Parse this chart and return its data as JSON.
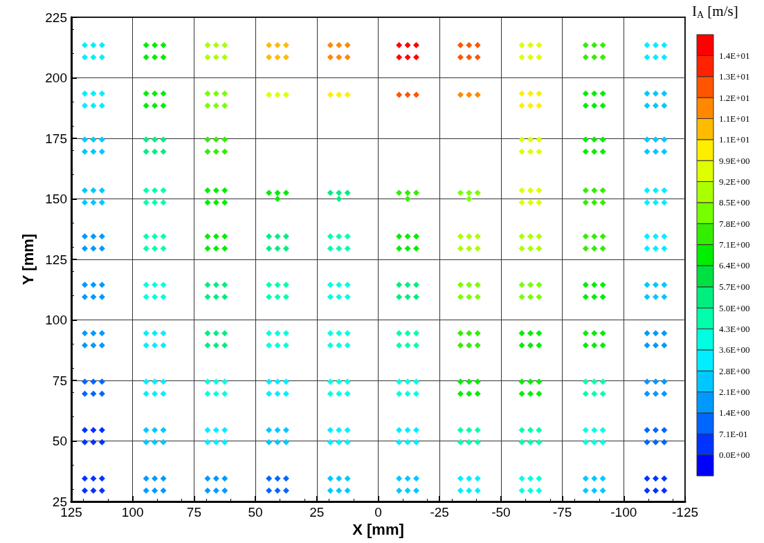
{
  "chart_data": {
    "type": "scatter",
    "xlabel": "X [mm]",
    "ylabel": "Y [mm]",
    "clabel": "I$_{A}$ [m/s]",
    "marker": "diamond",
    "grid": true,
    "xlim": [
      125,
      -125
    ],
    "xticks": [
      125,
      100,
      75,
      50,
      25,
      0,
      -25,
      -50,
      -75,
      -100,
      -125
    ],
    "ylim": [
      25,
      225
    ],
    "yticks": [
      25,
      50,
      75,
      100,
      125,
      150,
      175,
      200,
      225
    ],
    "clim": [
      -0.71,
      14.21
    ],
    "cticks": [
      {
        "value": 0,
        "label": "0.0E+00"
      },
      {
        "value": 0.71,
        "label": "7.1E-01"
      },
      {
        "value": 1.42,
        "label": "1.4E+00"
      },
      {
        "value": 2.13,
        "label": "2.1E+00"
      },
      {
        "value": 2.84,
        "label": "2.8E+00"
      },
      {
        "value": 3.55,
        "label": "3.6E+00"
      },
      {
        "value": 4.26,
        "label": "4.3E+00"
      },
      {
        "value": 4.97,
        "label": "5.0E+00"
      },
      {
        "value": 5.68,
        "label": "5.7E+00"
      },
      {
        "value": 6.4,
        "label": "6.4E+00"
      },
      {
        "value": 7.11,
        "label": "7.1E+00"
      },
      {
        "value": 7.82,
        "label": "7.8E+00"
      },
      {
        "value": 8.53,
        "label": "8.5E+00"
      },
      {
        "value": 9.24,
        "label": "9.2E+00"
      },
      {
        "value": 9.95,
        "label": "9.9E+00"
      },
      {
        "value": 10.66,
        "label": "1.1E+01"
      },
      {
        "value": 11.37,
        "label": "1.1E+01"
      },
      {
        "value": 12.08,
        "label": "1.2E+01"
      },
      {
        "value": 12.79,
        "label": "1.3E+01"
      },
      {
        "value": 13.5,
        "label": "1.4E+01"
      }
    ],
    "colors": [
      "#0000ff",
      "#0033ff",
      "#0066ff",
      "#0099ff",
      "#00c8ff",
      "#00eeff",
      "#00ffe0",
      "#00ffaa",
      "#00ee80",
      "#00e040",
      "#00ee00",
      "#33ee00",
      "#77ff00",
      "#aaff00",
      "#ddff00",
      "#ffee00",
      "#ffbb00",
      "#ff8800",
      "#ff5500",
      "#ff2200",
      "#ff0000"
    ],
    "series": [
      {
        "x": [
          119.5,
          116,
          112.5,
          119.5,
          116,
          112.5
        ],
        "values": [
          213.5,
          213.5,
          213.5,
          208.5,
          208.5,
          208.5
        ],
        "cvalues": [
          3.2,
          3.2,
          3.2,
          3.2,
          3.2,
          3.2
        ]
      },
      {
        "x": [
          94.5,
          91,
          87.5,
          94.5,
          91,
          87.5
        ],
        "values": [
          213.5,
          213.5,
          213.5,
          208.5,
          208.5,
          208.5
        ],
        "cvalues": [
          6.7,
          6.7,
          6.7,
          6.7,
          6.7,
          6.7
        ]
      },
      {
        "x": [
          69.5,
          66,
          62.5,
          69.5,
          66,
          62.5
        ],
        "values": [
          213.5,
          213.5,
          213.5,
          208.5,
          208.5,
          208.5
        ],
        "cvalues": [
          8.9,
          8.9,
          8.9,
          8.9,
          8.9,
          8.9
        ]
      },
      {
        "x": [
          44.5,
          41,
          37.5,
          44.5,
          41,
          37.5
        ],
        "values": [
          213.5,
          213.5,
          213.5,
          208.5,
          208.5,
          208.5
        ],
        "cvalues": [
          11.0,
          11.0,
          11.0,
          11.0,
          11.0,
          11.0
        ]
      },
      {
        "x": [
          19.5,
          16,
          12.5,
          19.5,
          16,
          12.5
        ],
        "values": [
          213.5,
          213.5,
          213.5,
          208.5,
          208.5,
          208.5
        ],
        "cvalues": [
          11.4,
          11.4,
          11.4,
          11.4,
          11.4,
          11.4
        ]
      },
      {
        "x": [
          -8.5,
          -12,
          -15.5,
          -8.5,
          -12,
          -15.5
        ],
        "values": [
          213.5,
          213.5,
          213.5,
          208.5,
          208.5,
          208.5
        ],
        "cvalues": [
          13.8,
          13.8,
          13.8,
          13.8,
          13.8,
          13.8
        ]
      },
      {
        "x": [
          -33.5,
          -37,
          -40.5,
          -33.5,
          -37,
          -40.5
        ],
        "values": [
          213.5,
          213.5,
          213.5,
          208.5,
          208.5,
          208.5
        ],
        "cvalues": [
          12.4,
          12.4,
          12.4,
          12.4,
          12.4,
          12.4
        ]
      },
      {
        "x": [
          -58.5,
          -62,
          -65.5,
          -58.5,
          -62,
          -65.5
        ],
        "values": [
          213.5,
          213.5,
          213.5,
          208.5,
          208.5,
          208.5
        ],
        "cvalues": [
          9.6,
          9.6,
          9.6,
          9.6,
          9.6,
          9.6
        ]
      },
      {
        "x": [
          -84.5,
          -88,
          -91.5,
          -84.5,
          -88,
          -91.5
        ],
        "values": [
          213.5,
          213.5,
          213.5,
          208.5,
          208.5,
          208.5
        ],
        "cvalues": [
          7.5,
          7.5,
          7.5,
          7.5,
          7.5,
          7.5
        ]
      },
      {
        "x": [
          -109.5,
          -113,
          -116.5,
          -109.5,
          -113,
          -116.5
        ],
        "values": [
          213.5,
          213.5,
          213.5,
          208.5,
          208.5,
          208.5
        ],
        "cvalues": [
          3.2,
          3.2,
          3.2,
          3.2,
          3.2,
          3.2
        ]
      },
      {
        "x": [
          119.5,
          116,
          112.5,
          119.5,
          116,
          112.5
        ],
        "values": [
          193.5,
          193.5,
          193.5,
          188.5,
          188.5,
          188.5
        ],
        "cvalues": [
          3.2,
          3.2,
          3.2,
          3.2,
          3.2,
          3.2
        ]
      },
      {
        "x": [
          94.5,
          91,
          87.5,
          94.5,
          91,
          87.5
        ],
        "values": [
          193.5,
          193.5,
          193.5,
          188.5,
          188.5,
          188.5
        ],
        "cvalues": [
          6.7,
          6.7,
          6.7,
          6.7,
          6.7,
          6.7
        ]
      },
      {
        "x": [
          69.5,
          66,
          62.5,
          69.5,
          66,
          62.5
        ],
        "values": [
          193.5,
          193.5,
          193.5,
          188.5,
          188.5,
          188.5
        ],
        "cvalues": [
          8.2,
          8.2,
          8.2,
          8.2,
          8.2,
          8.2
        ]
      },
      {
        "x": [
          44.5,
          41,
          37.5
        ],
        "values": [
          193,
          193,
          193
        ],
        "cvalues": [
          9.6,
          9.6,
          9.6
        ]
      },
      {
        "x": [
          19.5,
          16,
          12.5
        ],
        "values": [
          193,
          193,
          193
        ],
        "cvalues": [
          10.3,
          10.3,
          10.3
        ]
      },
      {
        "x": [
          -8.5,
          -12,
          -15.5
        ],
        "values": [
          193,
          193,
          193
        ],
        "cvalues": [
          12.4,
          12.4,
          12.4
        ]
      },
      {
        "x": [
          -33.5,
          -37,
          -40.5
        ],
        "values": [
          193,
          193,
          193
        ],
        "cvalues": [
          11.7,
          11.7,
          11.7
        ]
      },
      {
        "x": [
          -58.5,
          -62,
          -65.5,
          -58.5,
          -62,
          -65.5
        ],
        "values": [
          193.5,
          193.5,
          193.5,
          188.5,
          188.5,
          188.5
        ],
        "cvalues": [
          10.0,
          10.0,
          10.0,
          10.0,
          10.0,
          10.0
        ]
      },
      {
        "x": [
          -84.5,
          -88,
          -91.5,
          -84.5,
          -88,
          -91.5
        ],
        "values": [
          193.5,
          193.5,
          193.5,
          188.5,
          188.5,
          188.5
        ],
        "cvalues": [
          6.7,
          6.7,
          6.7,
          6.7,
          6.7,
          6.7
        ]
      },
      {
        "x": [
          -109.5,
          -113,
          -116.5,
          -109.5,
          -113,
          -116.5
        ],
        "values": [
          193.5,
          193.5,
          193.5,
          188.5,
          188.5,
          188.5
        ],
        "cvalues": [
          2.5,
          2.5,
          2.5,
          2.5,
          2.5,
          2.5
        ]
      },
      {
        "x": [
          119.5,
          116,
          112.5,
          119.5,
          116,
          112.5
        ],
        "values": [
          174.5,
          174.5,
          174.5,
          169.5,
          169.5,
          169.5
        ],
        "cvalues": [
          2.5,
          2.5,
          2.5,
          2.5,
          2.5,
          2.5
        ]
      },
      {
        "x": [
          94.5,
          91,
          87.5,
          94.5,
          91,
          87.5
        ],
        "values": [
          174.5,
          174.5,
          174.5,
          169.5,
          169.5,
          169.5
        ],
        "cvalues": [
          5.3,
          5.3,
          5.3,
          5.3,
          5.3,
          5.3
        ]
      },
      {
        "x": [
          69.5,
          66,
          62.5,
          69.5,
          66,
          62.5
        ],
        "values": [
          174.5,
          174.5,
          174.5,
          169.5,
          169.5,
          169.5
        ],
        "cvalues": [
          7.5,
          7.5,
          7.5,
          7.5,
          7.5,
          7.5
        ]
      },
      {
        "x": [
          -58.5,
          -62,
          -65.5,
          -58.5,
          -62,
          -65.5
        ],
        "values": [
          174.5,
          174.5,
          174.5,
          169.5,
          169.5,
          169.5
        ],
        "cvalues": [
          9.6,
          9.6,
          9.6,
          9.6,
          9.6,
          9.6
        ]
      },
      {
        "x": [
          -84.5,
          -88,
          -91.5,
          -84.5,
          -88,
          -91.5
        ],
        "values": [
          174.5,
          174.5,
          174.5,
          169.5,
          169.5,
          169.5
        ],
        "cvalues": [
          7.0,
          7.0,
          7.0,
          7.0,
          7.0,
          7.0
        ]
      },
      {
        "x": [
          -109.5,
          -113,
          -116.5,
          -109.5,
          -113,
          -116.5
        ],
        "values": [
          174.5,
          174.5,
          174.5,
          169.5,
          169.5,
          169.5
        ],
        "cvalues": [
          2.7,
          2.7,
          2.7,
          2.7,
          2.7,
          2.7
        ]
      },
      {
        "x": [
          119.5,
          116,
          112.5,
          119.5,
          116,
          112.5
        ],
        "values": [
          153.5,
          153.5,
          153.5,
          148.5,
          148.5,
          148.5
        ],
        "cvalues": [
          2.5,
          2.5,
          2.5,
          2.5,
          2.5,
          2.5
        ]
      },
      {
        "x": [
          94.5,
          91,
          87.5,
          94.5,
          91,
          87.5
        ],
        "values": [
          153.5,
          153.5,
          153.5,
          148.5,
          148.5,
          148.5
        ],
        "cvalues": [
          4.6,
          4.6,
          4.6,
          4.6,
          4.6,
          4.6
        ]
      },
      {
        "x": [
          69.5,
          66,
          62.5,
          69.5,
          66,
          62.5
        ],
        "values": [
          153.5,
          153.5,
          153.5,
          148.5,
          148.5,
          148.5
        ],
        "cvalues": [
          6.7,
          6.7,
          6.7,
          6.7,
          6.7,
          6.7
        ]
      },
      {
        "x": [
          44.5,
          41,
          37.5,
          41
        ],
        "values": [
          152.5,
          152.5,
          152.5,
          150
        ],
        "cvalues": [
          6.7,
          6.7,
          6.7,
          6.7
        ]
      },
      {
        "x": [
          19.5,
          16,
          12.5,
          16
        ],
        "values": [
          152.5,
          152.5,
          152.5,
          150
        ],
        "cvalues": [
          5.3,
          5.3,
          5.3,
          5.3
        ]
      },
      {
        "x": [
          -8.5,
          -12,
          -15.5,
          -12
        ],
        "values": [
          152.5,
          152.5,
          152.5,
          150
        ],
        "cvalues": [
          7.2,
          7.2,
          7.2,
          7.2
        ]
      },
      {
        "x": [
          -33.5,
          -37,
          -40.5,
          -37
        ],
        "values": [
          152.5,
          152.5,
          152.5,
          150
        ],
        "cvalues": [
          8.2,
          8.2,
          8.2,
          8.2
        ]
      },
      {
        "x": [
          -58.5,
          -62,
          -65.5,
          -58.5,
          -62,
          -65.5
        ],
        "values": [
          153.5,
          153.5,
          153.5,
          148.5,
          148.5,
          148.5
        ],
        "cvalues": [
          9.6,
          9.6,
          9.6,
          9.6,
          9.6,
          9.6
        ]
      },
      {
        "x": [
          -84.5,
          -88,
          -91.5,
          -84.5,
          -88,
          -91.5
        ],
        "values": [
          153.5,
          153.5,
          153.5,
          148.5,
          148.5,
          148.5
        ],
        "cvalues": [
          7.5,
          7.5,
          7.5,
          7.5,
          7.5,
          7.5
        ]
      },
      {
        "x": [
          -109.5,
          -113,
          -116.5,
          -109.5,
          -113,
          -116.5
        ],
        "values": [
          153.5,
          153.5,
          153.5,
          148.5,
          148.5,
          148.5
        ],
        "cvalues": [
          3.0,
          3.0,
          3.0,
          3.0,
          3.0,
          3.0
        ]
      },
      {
        "x": [
          119.5,
          116,
          112.5,
          119.5,
          116,
          112.5
        ],
        "values": [
          134.5,
          134.5,
          134.5,
          129.5,
          129.5,
          129.5
        ],
        "cvalues": [
          1.8,
          1.8,
          1.8,
          1.8,
          1.8,
          1.8
        ]
      },
      {
        "x": [
          94.5,
          91,
          87.5,
          94.5,
          91,
          87.5
        ],
        "values": [
          134.5,
          134.5,
          134.5,
          129.5,
          129.5,
          129.5
        ],
        "cvalues": [
          4.6,
          4.6,
          4.6,
          4.6,
          4.6,
          4.6
        ]
      },
      {
        "x": [
          69.5,
          66,
          62.5,
          69.5,
          66,
          62.5
        ],
        "values": [
          134.5,
          134.5,
          134.5,
          129.5,
          129.5,
          129.5
        ],
        "cvalues": [
          6.5,
          6.5,
          6.5,
          6.5,
          6.5,
          6.5
        ]
      },
      {
        "x": [
          44.5,
          41,
          37.5,
          44.5,
          41,
          37.5
        ],
        "values": [
          134.5,
          134.5,
          134.5,
          129.5,
          129.5,
          129.5
        ],
        "cvalues": [
          5.5,
          5.5,
          5.5,
          5.5,
          5.5,
          5.5
        ]
      },
      {
        "x": [
          19.5,
          16,
          12.5,
          19.5,
          16,
          12.5
        ],
        "values": [
          134.5,
          134.5,
          134.5,
          129.5,
          129.5,
          129.5
        ],
        "cvalues": [
          4.6,
          4.6,
          4.6,
          4.6,
          4.6,
          4.6
        ]
      },
      {
        "x": [
          -8.5,
          -12,
          -15.5,
          -8.5,
          -12,
          -15.5
        ],
        "values": [
          134.5,
          134.5,
          134.5,
          129.5,
          129.5,
          129.5
        ],
        "cvalues": [
          6.7,
          6.7,
          6.7,
          6.7,
          6.7,
          6.7
        ]
      },
      {
        "x": [
          -33.5,
          -37,
          -40.5,
          -33.5,
          -37,
          -40.5
        ],
        "values": [
          134.5,
          134.5,
          134.5,
          129.5,
          129.5,
          129.5
        ],
        "cvalues": [
          8.9,
          8.9,
          8.9,
          8.9,
          8.9,
          8.9
        ]
      },
      {
        "x": [
          -58.5,
          -62,
          -65.5,
          -58.5,
          -62,
          -65.5
        ],
        "values": [
          134.5,
          134.5,
          134.5,
          129.5,
          129.5,
          129.5
        ],
        "cvalues": [
          8.6,
          8.6,
          8.6,
          8.6,
          8.6,
          8.6
        ]
      },
      {
        "x": [
          -84.5,
          -88,
          -91.5,
          -84.5,
          -88,
          -91.5
        ],
        "values": [
          134.5,
          134.5,
          134.5,
          129.5,
          129.5,
          129.5
        ],
        "cvalues": [
          7.3,
          7.3,
          7.3,
          7.3,
          7.3,
          7.3
        ]
      },
      {
        "x": [
          -109.5,
          -113,
          -116.5,
          -109.5,
          -113,
          -116.5
        ],
        "values": [
          134.5,
          134.5,
          134.5,
          129.5,
          129.5,
          129.5
        ],
        "cvalues": [
          3.0,
          3.0,
          3.0,
          3.0,
          3.0,
          3.0
        ]
      },
      {
        "x": [
          119.5,
          116,
          112.5,
          119.5,
          116,
          112.5
        ],
        "values": [
          114.5,
          114.5,
          114.5,
          109.5,
          109.5,
          109.5
        ],
        "cvalues": [
          1.6,
          1.6,
          1.6,
          1.6,
          1.6,
          1.6
        ]
      },
      {
        "x": [
          94.5,
          91,
          87.5,
          94.5,
          91,
          87.5
        ],
        "values": [
          114.5,
          114.5,
          114.5,
          109.5,
          109.5,
          109.5
        ],
        "cvalues": [
          3.9,
          3.9,
          3.9,
          3.9,
          3.9,
          3.9
        ]
      },
      {
        "x": [
          69.5,
          66,
          62.5,
          69.5,
          66,
          62.5
        ],
        "values": [
          114.5,
          114.5,
          114.5,
          109.5,
          109.5,
          109.5
        ],
        "cvalues": [
          5.6,
          5.6,
          5.6,
          5.6,
          5.6,
          5.6
        ]
      },
      {
        "x": [
          44.5,
          41,
          37.5,
          44.5,
          41,
          37.5
        ],
        "values": [
          114.5,
          114.5,
          114.5,
          109.5,
          109.5,
          109.5
        ],
        "cvalues": [
          4.8,
          4.8,
          4.8,
          4.8,
          4.8,
          4.8
        ]
      },
      {
        "x": [
          19.5,
          16,
          12.5,
          19.5,
          16,
          12.5
        ],
        "values": [
          114.5,
          114.5,
          114.5,
          109.5,
          109.5,
          109.5
        ],
        "cvalues": [
          4.0,
          4.0,
          4.0,
          4.0,
          4.0,
          4.0
        ]
      },
      {
        "x": [
          -8.5,
          -12,
          -15.5,
          -8.5,
          -12,
          -15.5
        ],
        "values": [
          114.5,
          114.5,
          114.5,
          109.5,
          109.5,
          109.5
        ],
        "cvalues": [
          5.3,
          5.3,
          5.3,
          5.3,
          5.3,
          5.3
        ]
      },
      {
        "x": [
          -33.5,
          -37,
          -40.5,
          -33.5,
          -37,
          -40.5
        ],
        "values": [
          114.5,
          114.5,
          114.5,
          109.5,
          109.5,
          109.5
        ],
        "cvalues": [
          8.2,
          8.2,
          8.2,
          8.2,
          8.2,
          8.2
        ]
      },
      {
        "x": [
          -58.5,
          -62,
          -65.5,
          -58.5,
          -62,
          -65.5
        ],
        "values": [
          114.5,
          114.5,
          114.5,
          109.5,
          109.5,
          109.5
        ],
        "cvalues": [
          8.2,
          8.2,
          8.2,
          8.2,
          8.2,
          8.2
        ]
      },
      {
        "x": [
          -84.5,
          -88,
          -91.5,
          -84.5,
          -88,
          -91.5
        ],
        "values": [
          114.5,
          114.5,
          114.5,
          109.5,
          109.5,
          109.5
        ],
        "cvalues": [
          6.7,
          6.7,
          6.7,
          6.7,
          6.7,
          6.7
        ]
      },
      {
        "x": [
          -109.5,
          -113,
          -116.5,
          -109.5,
          -113,
          -116.5
        ],
        "values": [
          114.5,
          114.5,
          114.5,
          109.5,
          109.5,
          109.5
        ],
        "cvalues": [
          2.2,
          2.2,
          2.2,
          2.2,
          2.2,
          2.2
        ]
      },
      {
        "x": [
          119.5,
          116,
          112.5,
          119.5,
          116,
          112.5
        ],
        "values": [
          94.5,
          94.5,
          94.5,
          89.5,
          89.5,
          89.5
        ],
        "cvalues": [
          1.6,
          1.6,
          1.6,
          1.6,
          1.6,
          1.6
        ]
      },
      {
        "x": [
          94.5,
          91,
          87.5,
          94.5,
          91,
          87.5
        ],
        "values": [
          94.5,
          94.5,
          94.5,
          89.5,
          89.5,
          89.5
        ],
        "cvalues": [
          3.4,
          3.4,
          3.4,
          3.4,
          3.4,
          3.4
        ]
      },
      {
        "x": [
          69.5,
          66,
          62.5,
          69.5,
          66,
          62.5
        ],
        "values": [
          94.5,
          94.5,
          94.5,
          89.5,
          89.5,
          89.5
        ],
        "cvalues": [
          5.3,
          5.3,
          5.3,
          5.3,
          5.3,
          5.3
        ]
      },
      {
        "x": [
          44.5,
          41,
          37.5,
          44.5,
          41,
          37.5
        ],
        "values": [
          94.5,
          94.5,
          94.5,
          89.5,
          89.5,
          89.5
        ],
        "cvalues": [
          4.2,
          4.2,
          4.2,
          4.2,
          4.2,
          4.2
        ]
      },
      {
        "x": [
          19.5,
          16,
          12.5,
          19.5,
          16,
          12.5
        ],
        "values": [
          94.5,
          94.5,
          94.5,
          89.5,
          89.5,
          89.5
        ],
        "cvalues": [
          4.0,
          4.0,
          4.0,
          4.0,
          4.0,
          4.0
        ]
      },
      {
        "x": [
          -8.5,
          -12,
          -15.5,
          -8.5,
          -12,
          -15.5
        ],
        "values": [
          94.5,
          94.5,
          94.5,
          89.5,
          89.5,
          89.5
        ],
        "cvalues": [
          4.3,
          4.3,
          4.3,
          4.3,
          4.3,
          4.3
        ]
      },
      {
        "x": [
          -33.5,
          -37,
          -40.5,
          -33.5,
          -37,
          -40.5
        ],
        "values": [
          94.5,
          94.5,
          94.5,
          89.5,
          89.5,
          89.5
        ],
        "cvalues": [
          7.3,
          7.3,
          7.3,
          7.3,
          7.3,
          7.3
        ]
      },
      {
        "x": [
          -58.5,
          -62,
          -65.5,
          -58.5,
          -62,
          -65.5
        ],
        "values": [
          94.5,
          94.5,
          94.5,
          89.5,
          89.5,
          89.5
        ],
        "cvalues": [
          7.0,
          7.0,
          7.0,
          7.0,
          7.0,
          7.0
        ]
      },
      {
        "x": [
          -84.5,
          -88,
          -91.5,
          -84.5,
          -88,
          -91.5
        ],
        "values": [
          94.5,
          94.5,
          94.5,
          89.5,
          89.5,
          89.5
        ],
        "cvalues": [
          6.8,
          6.8,
          6.8,
          6.8,
          6.8,
          6.8
        ]
      },
      {
        "x": [
          -109.5,
          -113,
          -116.5,
          -109.5,
          -113,
          -116.5
        ],
        "values": [
          94.5,
          94.5,
          94.5,
          89.5,
          89.5,
          89.5
        ],
        "cvalues": [
          1.9,
          1.9,
          1.9,
          1.9,
          1.9,
          1.9
        ]
      },
      {
        "x": [
          119.5,
          116,
          112.5,
          119.5,
          116,
          112.5
        ],
        "values": [
          74.5,
          74.5,
          74.5,
          69.5,
          69.5,
          69.5
        ],
        "cvalues": [
          0.9,
          0.9,
          0.9,
          0.9,
          0.9,
          0.9
        ]
      },
      {
        "x": [
          94.5,
          91,
          87.5,
          94.5,
          91,
          87.5
        ],
        "values": [
          74.5,
          74.5,
          74.5,
          69.5,
          69.5,
          69.5
        ],
        "cvalues": [
          3.2,
          3.2,
          3.2,
          3.2,
          3.2,
          3.2
        ]
      },
      {
        "x": [
          69.5,
          66,
          62.5,
          69.5,
          66,
          62.5
        ],
        "values": [
          74.5,
          74.5,
          74.5,
          69.5,
          69.5,
          69.5
        ],
        "cvalues": [
          3.9,
          3.9,
          3.9,
          3.9,
          3.9,
          3.9
        ]
      },
      {
        "x": [
          44.5,
          41,
          37.5,
          44.5,
          41,
          37.5
        ],
        "values": [
          74.5,
          74.5,
          74.5,
          69.5,
          69.5,
          69.5
        ],
        "cvalues": [
          3.5,
          3.5,
          3.5,
          3.5,
          3.5,
          3.5
        ]
      },
      {
        "x": [
          19.5,
          16,
          12.5,
          19.5,
          16,
          12.5
        ],
        "values": [
          74.5,
          74.5,
          74.5,
          69.5,
          69.5,
          69.5
        ],
        "cvalues": [
          4.0,
          4.0,
          4.0,
          4.0,
          4.0,
          4.0
        ]
      },
      {
        "x": [
          -8.5,
          -12,
          -15.5,
          -8.5,
          -12,
          -15.5
        ],
        "values": [
          74.5,
          74.5,
          74.5,
          69.5,
          69.5,
          69.5
        ],
        "cvalues": [
          3.9,
          3.9,
          3.9,
          3.9,
          3.9,
          3.9
        ]
      },
      {
        "x": [
          -33.5,
          -37,
          -40.5,
          -33.5,
          -37,
          -40.5
        ],
        "values": [
          74.5,
          74.5,
          74.5,
          69.5,
          69.5,
          69.5
        ],
        "cvalues": [
          6.8,
          6.8,
          6.8,
          6.8,
          6.8,
          6.8
        ]
      },
      {
        "x": [
          -58.5,
          -62,
          -65.5,
          -58.5,
          -62,
          -65.5
        ],
        "values": [
          74.5,
          74.5,
          74.5,
          69.5,
          69.5,
          69.5
        ],
        "cvalues": [
          6.7,
          6.7,
          6.7,
          6.7,
          6.7,
          6.7
        ]
      },
      {
        "x": [
          -84.5,
          -88,
          -91.5,
          -84.5,
          -88,
          -91.5
        ],
        "values": [
          74.5,
          74.5,
          74.5,
          69.5,
          69.5,
          69.5
        ],
        "cvalues": [
          4.9,
          4.9,
          4.9,
          4.9,
          4.9,
          4.9
        ]
      },
      {
        "x": [
          -109.5,
          -113,
          -116.5,
          -109.5,
          -113,
          -116.5
        ],
        "values": [
          74.5,
          74.5,
          74.5,
          69.5,
          69.5,
          69.5
        ],
        "cvalues": [
          1.6,
          1.6,
          1.6,
          1.6,
          1.6,
          1.6
        ]
      },
      {
        "x": [
          119.5,
          116,
          112.5,
          119.5,
          116,
          112.5
        ],
        "values": [
          54.5,
          54.5,
          54.5,
          49.5,
          49.5,
          49.5
        ],
        "cvalues": [
          0.7,
          0.7,
          0.7,
          0.7,
          0.7,
          0.7
        ]
      },
      {
        "x": [
          94.5,
          91,
          87.5,
          94.5,
          91,
          87.5
        ],
        "values": [
          54.5,
          54.5,
          54.5,
          49.5,
          49.5,
          49.5
        ],
        "cvalues": [
          2.4,
          2.4,
          2.4,
          2.4,
          2.4,
          2.4
        ]
      },
      {
        "x": [
          69.5,
          66,
          62.5,
          69.5,
          66,
          62.5
        ],
        "values": [
          54.5,
          54.5,
          54.5,
          49.5,
          49.5,
          49.5
        ],
        "cvalues": [
          3.1,
          3.1,
          3.1,
          3.1,
          3.1,
          3.1
        ]
      },
      {
        "x": [
          44.5,
          41,
          37.5,
          44.5,
          41,
          37.5
        ],
        "values": [
          54.5,
          54.5,
          54.5,
          49.5,
          49.5,
          49.5
        ],
        "cvalues": [
          2.4,
          2.4,
          2.4,
          2.4,
          2.4,
          2.4
        ]
      },
      {
        "x": [
          19.5,
          16,
          12.5,
          19.5,
          16,
          12.5
        ],
        "values": [
          54.5,
          54.5,
          54.5,
          49.5,
          49.5,
          49.5
        ],
        "cvalues": [
          3.5,
          3.5,
          3.5,
          3.5,
          3.5,
          3.5
        ]
      },
      {
        "x": [
          -8.5,
          -12,
          -15.5,
          -8.5,
          -12,
          -15.5
        ],
        "values": [
          54.5,
          54.5,
          54.5,
          49.5,
          49.5,
          49.5
        ],
        "cvalues": [
          3.3,
          3.3,
          3.3,
          3.3,
          3.3,
          3.3
        ]
      },
      {
        "x": [
          -33.5,
          -37,
          -40.5,
          -33.5,
          -37,
          -40.5
        ],
        "values": [
          54.5,
          54.5,
          54.5,
          49.5,
          49.5,
          49.5
        ],
        "cvalues": [
          4.7,
          4.7,
          4.7,
          4.7,
          4.7,
          4.7
        ]
      },
      {
        "x": [
          -58.5,
          -62,
          -65.5,
          -58.5,
          -62,
          -65.5
        ],
        "values": [
          54.5,
          54.5,
          54.5,
          49.5,
          49.5,
          49.5
        ],
        "cvalues": [
          4.7,
          4.7,
          4.7,
          4.7,
          4.7,
          4.7
        ]
      },
      {
        "x": [
          -84.5,
          -88,
          -91.5,
          -84.5,
          -88,
          -91.5
        ],
        "values": [
          54.5,
          54.5,
          54.5,
          49.5,
          49.5,
          49.5
        ],
        "cvalues": [
          4.0,
          4.0,
          4.0,
          4.0,
          4.0,
          4.0
        ]
      },
      {
        "x": [
          -109.5,
          -113,
          -116.5,
          -109.5,
          -113,
          -116.5
        ],
        "values": [
          54.5,
          54.5,
          54.5,
          49.5,
          49.5,
          49.5
        ],
        "cvalues": [
          0.8,
          0.8,
          0.8,
          0.8,
          0.8,
          0.8
        ]
      },
      {
        "x": [
          119.5,
          116,
          112.5,
          119.5,
          116,
          112.5
        ],
        "values": [
          34.5,
          34.5,
          34.5,
          29.5,
          29.5,
          29.5
        ],
        "cvalues": [
          0.7,
          0.7,
          0.7,
          0.7,
          0.7,
          0.7
        ]
      },
      {
        "x": [
          94.5,
          91,
          87.5,
          94.5,
          91,
          87.5
        ],
        "values": [
          34.5,
          34.5,
          34.5,
          29.5,
          29.5,
          29.5
        ],
        "cvalues": [
          1.6,
          1.6,
          1.6,
          1.6,
          1.6,
          1.6
        ]
      },
      {
        "x": [
          69.5,
          66,
          62.5,
          69.5,
          66,
          62.5
        ],
        "values": [
          34.5,
          34.5,
          34.5,
          29.5,
          29.5,
          29.5
        ],
        "cvalues": [
          1.6,
          1.6,
          1.6,
          1.6,
          1.6,
          1.6
        ]
      },
      {
        "x": [
          44.5,
          41,
          37.5,
          44.5,
          41,
          37.5
        ],
        "values": [
          34.5,
          34.5,
          34.5,
          29.5,
          29.5,
          29.5
        ],
        "cvalues": [
          1.3,
          1.3,
          1.3,
          1.3,
          1.3,
          1.3
        ]
      },
      {
        "x": [
          19.5,
          16,
          12.5,
          19.5,
          16,
          12.5
        ],
        "values": [
          34.5,
          34.5,
          34.5,
          29.5,
          29.5,
          29.5
        ],
        "cvalues": [
          2.5,
          2.5,
          2.5,
          2.5,
          2.5,
          2.5
        ]
      },
      {
        "x": [
          -8.5,
          -12,
          -15.5,
          -8.5,
          -12,
          -15.5
        ],
        "values": [
          34.5,
          34.5,
          34.5,
          29.5,
          29.5,
          29.5
        ],
        "cvalues": [
          2.4,
          2.4,
          2.4,
          2.4,
          2.4,
          2.4
        ]
      },
      {
        "x": [
          -33.5,
          -37,
          -40.5,
          -33.5,
          -37,
          -40.5
        ],
        "values": [
          34.5,
          34.5,
          34.5,
          29.5,
          29.5,
          29.5
        ],
        "cvalues": [
          3.3,
          3.3,
          3.3,
          3.3,
          3.3,
          3.3
        ]
      },
      {
        "x": [
          -58.5,
          -62,
          -65.5,
          -58.5,
          -62,
          -65.5
        ],
        "values": [
          34.5,
          34.5,
          34.5,
          29.5,
          29.5,
          29.5
        ],
        "cvalues": [
          3.8,
          3.8,
          3.8,
          3.8,
          3.8,
          3.8
        ]
      },
      {
        "x": [
          -84.5,
          -88,
          -91.5,
          -84.5,
          -88,
          -91.5
        ],
        "values": [
          34.5,
          34.5,
          34.5,
          29.5,
          29.5,
          29.5
        ],
        "cvalues": [
          2.6,
          2.6,
          2.6,
          2.6,
          2.6,
          2.6
        ]
      },
      {
        "x": [
          -109.5,
          -113,
          -116.5,
          -109.5,
          -113,
          -116.5
        ],
        "values": [
          34.5,
          34.5,
          34.5,
          29.5,
          29.5,
          29.5
        ],
        "cvalues": [
          0.6,
          0.6,
          0.6,
          0.6,
          0.6,
          0.6
        ]
      }
    ]
  }
}
